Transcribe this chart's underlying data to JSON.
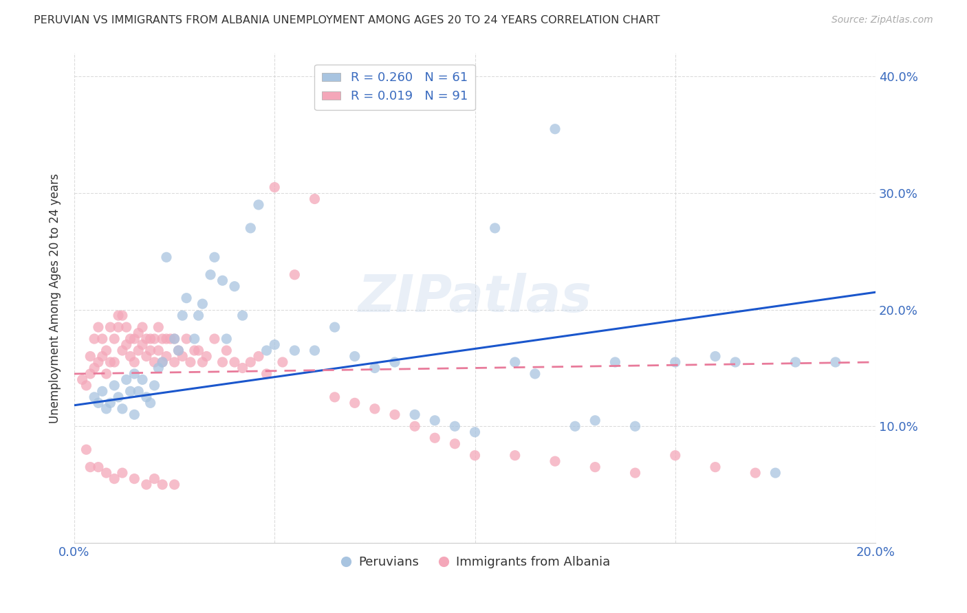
{
  "title": "PERUVIAN VS IMMIGRANTS FROM ALBANIA UNEMPLOYMENT AMONG AGES 20 TO 24 YEARS CORRELATION CHART",
  "source": "Source: ZipAtlas.com",
  "ylabel": "Unemployment Among Ages 20 to 24 years",
  "xlim": [
    0.0,
    0.2
  ],
  "ylim": [
    0.0,
    0.42
  ],
  "blue_R": 0.26,
  "blue_N": 61,
  "pink_R": 0.019,
  "pink_N": 91,
  "blue_color": "#a8c4e0",
  "pink_color": "#f4a7b9",
  "blue_line_color": "#1a56cc",
  "pink_line_color": "#e87a9a",
  "watermark": "ZIPatlas",
  "legend_label_blue": "Peruvians",
  "legend_label_pink": "Immigrants from Albania",
  "blue_scatter_x": [
    0.005,
    0.006,
    0.007,
    0.008,
    0.009,
    0.01,
    0.011,
    0.012,
    0.013,
    0.014,
    0.015,
    0.015,
    0.016,
    0.017,
    0.018,
    0.019,
    0.02,
    0.021,
    0.022,
    0.023,
    0.025,
    0.026,
    0.027,
    0.028,
    0.03,
    0.031,
    0.032,
    0.034,
    0.035,
    0.037,
    0.038,
    0.04,
    0.042,
    0.044,
    0.046,
    0.048,
    0.05,
    0.055,
    0.06,
    0.065,
    0.07,
    0.075,
    0.08,
    0.085,
    0.09,
    0.095,
    0.1,
    0.105,
    0.11,
    0.115,
    0.12,
    0.125,
    0.13,
    0.135,
    0.14,
    0.15,
    0.16,
    0.165,
    0.175,
    0.18,
    0.19
  ],
  "blue_scatter_y": [
    0.125,
    0.12,
    0.13,
    0.115,
    0.12,
    0.135,
    0.125,
    0.115,
    0.14,
    0.13,
    0.145,
    0.11,
    0.13,
    0.14,
    0.125,
    0.12,
    0.135,
    0.15,
    0.155,
    0.245,
    0.175,
    0.165,
    0.195,
    0.21,
    0.175,
    0.195,
    0.205,
    0.23,
    0.245,
    0.225,
    0.175,
    0.22,
    0.195,
    0.27,
    0.29,
    0.165,
    0.17,
    0.165,
    0.165,
    0.185,
    0.16,
    0.15,
    0.155,
    0.11,
    0.105,
    0.1,
    0.095,
    0.27,
    0.155,
    0.145,
    0.355,
    0.1,
    0.105,
    0.155,
    0.1,
    0.155,
    0.16,
    0.155,
    0.06,
    0.155,
    0.155
  ],
  "pink_scatter_x": [
    0.002,
    0.003,
    0.004,
    0.004,
    0.005,
    0.005,
    0.006,
    0.006,
    0.007,
    0.007,
    0.008,
    0.008,
    0.009,
    0.009,
    0.01,
    0.01,
    0.011,
    0.011,
    0.012,
    0.012,
    0.013,
    0.013,
    0.014,
    0.014,
    0.015,
    0.015,
    0.016,
    0.016,
    0.017,
    0.017,
    0.018,
    0.018,
    0.019,
    0.019,
    0.02,
    0.02,
    0.021,
    0.021,
    0.022,
    0.022,
    0.023,
    0.023,
    0.024,
    0.025,
    0.025,
    0.026,
    0.027,
    0.028,
    0.029,
    0.03,
    0.031,
    0.032,
    0.033,
    0.035,
    0.037,
    0.038,
    0.04,
    0.042,
    0.044,
    0.046,
    0.048,
    0.05,
    0.052,
    0.055,
    0.06,
    0.065,
    0.07,
    0.075,
    0.08,
    0.085,
    0.09,
    0.095,
    0.1,
    0.11,
    0.12,
    0.13,
    0.14,
    0.15,
    0.16,
    0.17,
    0.003,
    0.004,
    0.006,
    0.008,
    0.01,
    0.012,
    0.015,
    0.018,
    0.02,
    0.022,
    0.025
  ],
  "pink_scatter_y": [
    0.14,
    0.135,
    0.145,
    0.16,
    0.15,
    0.175,
    0.155,
    0.185,
    0.16,
    0.175,
    0.145,
    0.165,
    0.155,
    0.185,
    0.155,
    0.175,
    0.185,
    0.195,
    0.165,
    0.195,
    0.185,
    0.17,
    0.16,
    0.175,
    0.155,
    0.175,
    0.165,
    0.18,
    0.17,
    0.185,
    0.16,
    0.175,
    0.165,
    0.175,
    0.155,
    0.175,
    0.165,
    0.185,
    0.155,
    0.175,
    0.175,
    0.16,
    0.175,
    0.155,
    0.175,
    0.165,
    0.16,
    0.175,
    0.155,
    0.165,
    0.165,
    0.155,
    0.16,
    0.175,
    0.155,
    0.165,
    0.155,
    0.15,
    0.155,
    0.16,
    0.145,
    0.305,
    0.155,
    0.23,
    0.295,
    0.125,
    0.12,
    0.115,
    0.11,
    0.1,
    0.09,
    0.085,
    0.075,
    0.075,
    0.07,
    0.065,
    0.06,
    0.075,
    0.065,
    0.06,
    0.08,
    0.065,
    0.065,
    0.06,
    0.055,
    0.06,
    0.055,
    0.05,
    0.055,
    0.05,
    0.05
  ],
  "blue_line_x": [
    0.0,
    0.2
  ],
  "blue_line_y": [
    0.118,
    0.215
  ],
  "pink_line_x": [
    0.0,
    0.2
  ],
  "pink_line_y": [
    0.145,
    0.155
  ]
}
